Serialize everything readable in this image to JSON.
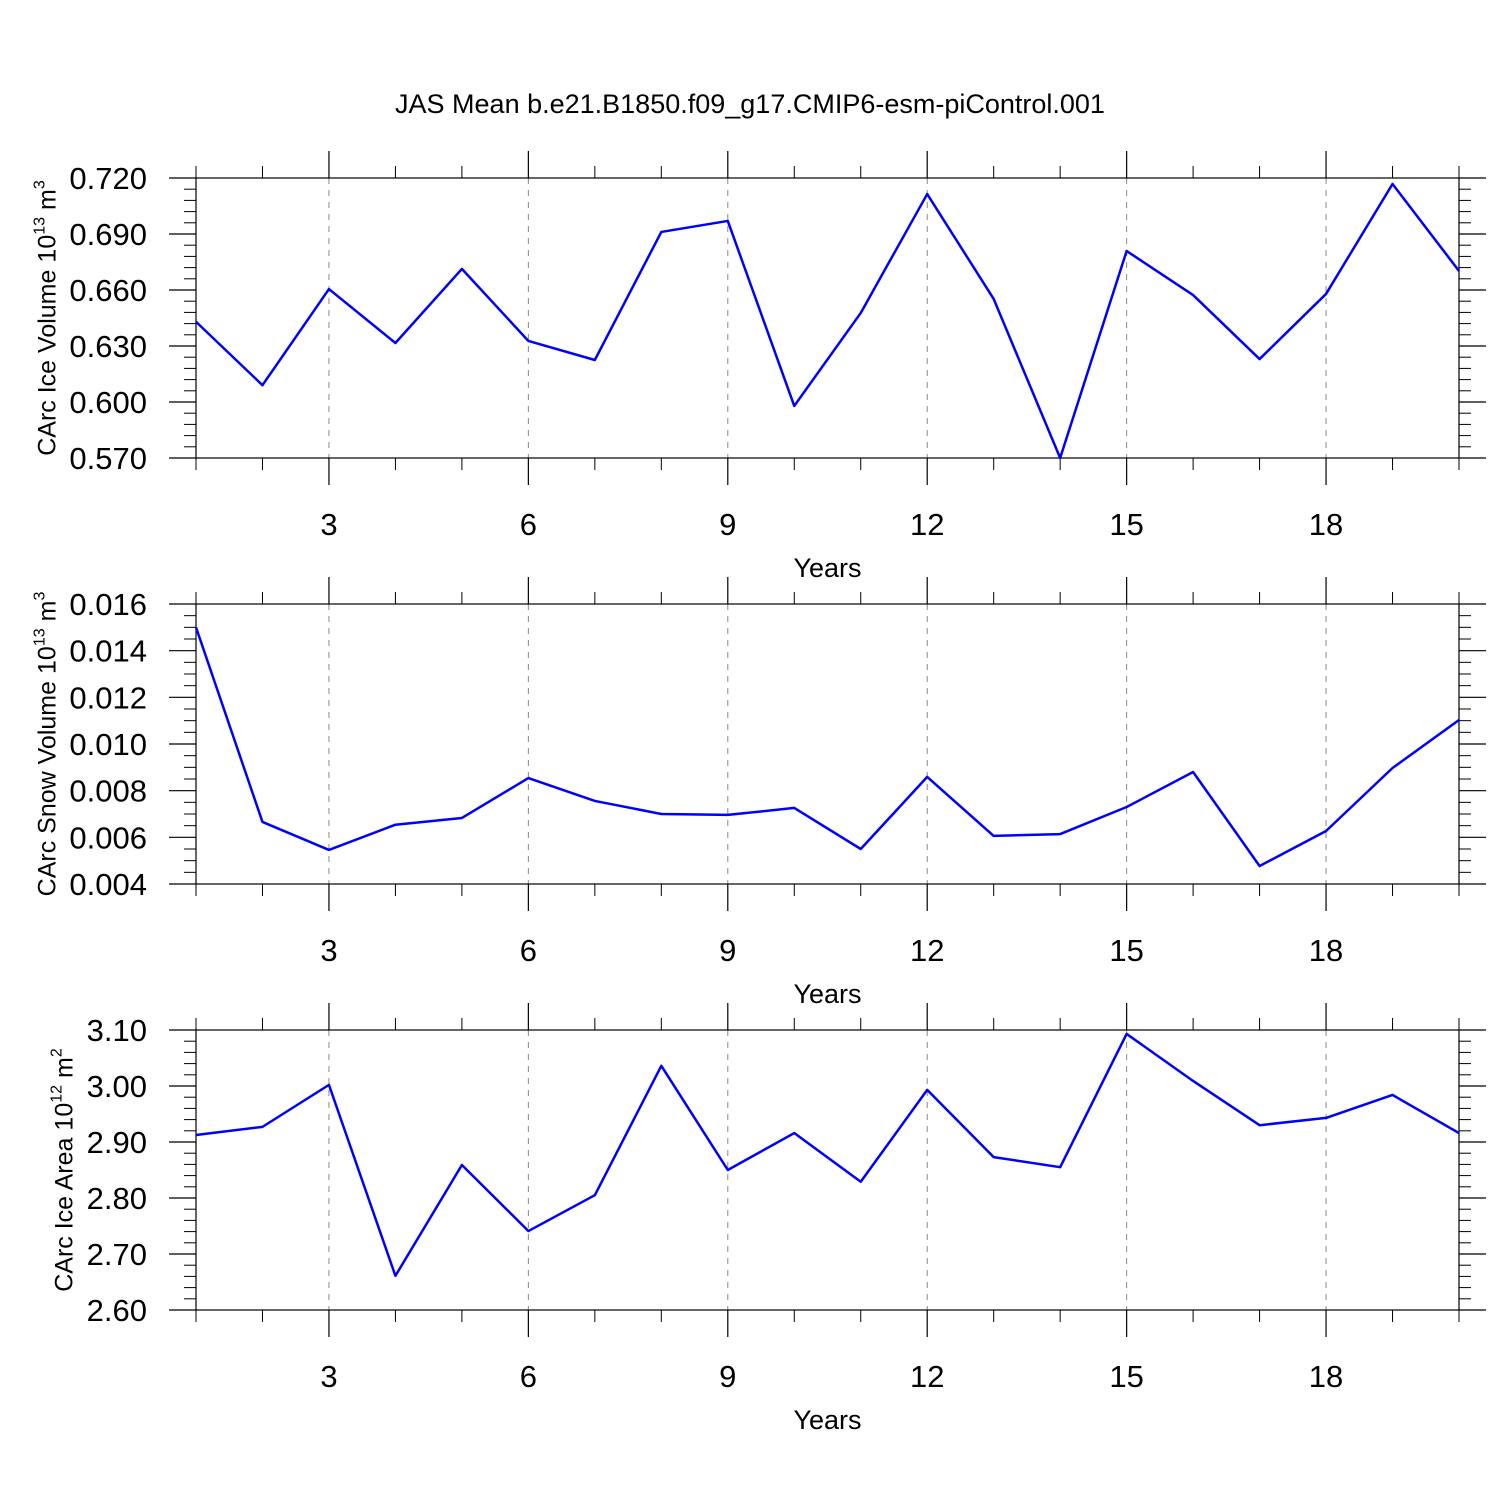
{
  "title": "JAS Mean b.e21.B1850.f09_g17.CMIP6-esm-piControl.001",
  "chart_data": [
    {
      "type": "line",
      "color": "#0000ff",
      "grid": true,
      "ylabel": {
        "name": "CArc Ice Volume",
        "scale_base": "10",
        "scale_exp": "13",
        "unit": "m",
        "unit_exp": "3"
      },
      "xlabel": "Years",
      "x": [
        1,
        2,
        3,
        4,
        5,
        6,
        7,
        8,
        9,
        10,
        11,
        12,
        13,
        14,
        15,
        16,
        17,
        18,
        19,
        20
      ],
      "values": [
        0.643,
        0.609,
        0.6605,
        0.6316,
        0.6713,
        0.6327,
        0.6225,
        0.6911,
        0.697,
        0.5979,
        0.6477,
        0.7114,
        0.6552,
        0.57,
        0.6809,
        0.6573,
        0.623,
        0.6579,
        0.7168,
        0.6702
      ],
      "xlim": [
        1,
        20
      ],
      "xticks": [
        3,
        6,
        9,
        12,
        15,
        18
      ],
      "xminorticks": [
        1,
        2,
        4,
        5,
        7,
        8,
        10,
        11,
        13,
        14,
        16,
        17,
        19,
        20
      ],
      "ylim": [
        0.57,
        0.72
      ],
      "yticks": [
        {
          "value": 0.57,
          "label": "0.570"
        },
        {
          "value": 0.6,
          "label": "0.600"
        },
        {
          "value": 0.63,
          "label": "0.630"
        },
        {
          "value": 0.66,
          "label": "0.660"
        },
        {
          "value": 0.69,
          "label": "0.690"
        },
        {
          "value": 0.72,
          "label": "0.720"
        }
      ],
      "yminorticks": [
        0.576,
        0.582,
        0.588,
        0.594,
        0.606,
        0.612,
        0.618,
        0.624,
        0.636,
        0.642,
        0.648,
        0.654,
        0.666,
        0.672,
        0.678,
        0.684,
        0.696,
        0.702,
        0.708,
        0.714
      ]
    },
    {
      "type": "line",
      "color": "#0000ff",
      "grid": true,
      "ylabel": {
        "name": "CArc Snow Volume",
        "scale_base": "10",
        "scale_exp": "13",
        "unit": "m",
        "unit_exp": "3"
      },
      "xlabel": "Years",
      "x": [
        1,
        2,
        3,
        4,
        5,
        6,
        7,
        8,
        9,
        10,
        11,
        12,
        13,
        14,
        15,
        16,
        17,
        18,
        19,
        20
      ],
      "values": [
        0.015,
        0.00666,
        0.00546,
        0.00654,
        0.00683,
        0.00854,
        0.00756,
        0.007,
        0.00696,
        0.00726,
        0.0055,
        0.00859,
        0.00606,
        0.00614,
        0.0073,
        0.0088,
        0.00477,
        0.00627,
        0.00897,
        0.01103
      ],
      "xlim": [
        1,
        20
      ],
      "xticks": [
        3,
        6,
        9,
        12,
        15,
        18
      ],
      "xminorticks": [
        1,
        2,
        4,
        5,
        7,
        8,
        10,
        11,
        13,
        14,
        16,
        17,
        19,
        20
      ],
      "ylim": [
        0.004,
        0.016
      ],
      "yticks": [
        0.004,
        0.006,
        0.008,
        {
          "value": 0.01,
          "label": "0.010"
        },
        0.012,
        0.014,
        0.016
      ],
      "yminorticks": [
        0.0045,
        0.005,
        0.0055,
        0.0065,
        0.007,
        0.0075,
        0.0085,
        0.009,
        0.0095,
        0.0105,
        0.011,
        0.0115,
        0.0125,
        0.013,
        0.0135,
        0.0145,
        0.015,
        0.0155
      ]
    },
    {
      "type": "line",
      "color": "#0000ff",
      "grid": true,
      "ylabel": {
        "name": "CArc Ice Area",
        "scale_base": "10",
        "scale_exp": "12",
        "unit": "m",
        "unit_exp": "2"
      },
      "xlabel": "Years",
      "x": [
        1,
        2,
        3,
        4,
        5,
        6,
        7,
        8,
        9,
        10,
        11,
        12,
        13,
        14,
        15,
        16,
        17,
        18,
        19,
        20
      ],
      "values": [
        2.9125,
        2.927,
        3.002,
        2.661,
        2.859,
        2.741,
        2.805,
        3.036,
        2.85,
        2.916,
        2.829,
        2.993,
        2.873,
        2.855,
        3.093,
        3.009,
        2.93,
        2.943,
        2.984,
        2.916
      ],
      "xlim": [
        1,
        20
      ],
      "xticks": [
        3,
        6,
        9,
        12,
        15,
        18
      ],
      "xminorticks": [
        1,
        2,
        4,
        5,
        7,
        8,
        10,
        11,
        13,
        14,
        16,
        17,
        19,
        20
      ],
      "ylim": [
        2.6,
        3.1
      ],
      "yticks": [
        {
          "value": 2.6,
          "label": "2.60"
        },
        {
          "value": 2.7,
          "label": "2.70"
        },
        {
          "value": 2.8,
          "label": "2.80"
        },
        {
          "value": 2.9,
          "label": "2.90"
        },
        {
          "value": 3,
          "label": "3.00"
        },
        {
          "value": 3.1,
          "label": "3.10"
        }
      ],
      "yminorticks": [
        2.62,
        2.64,
        2.66,
        2.68,
        2.72,
        2.74,
        2.76,
        2.78,
        2.82,
        2.84,
        2.86,
        2.88,
        2.92,
        2.94,
        2.96,
        2.98,
        3.02,
        3.04,
        3.06,
        3.08
      ]
    }
  ]
}
